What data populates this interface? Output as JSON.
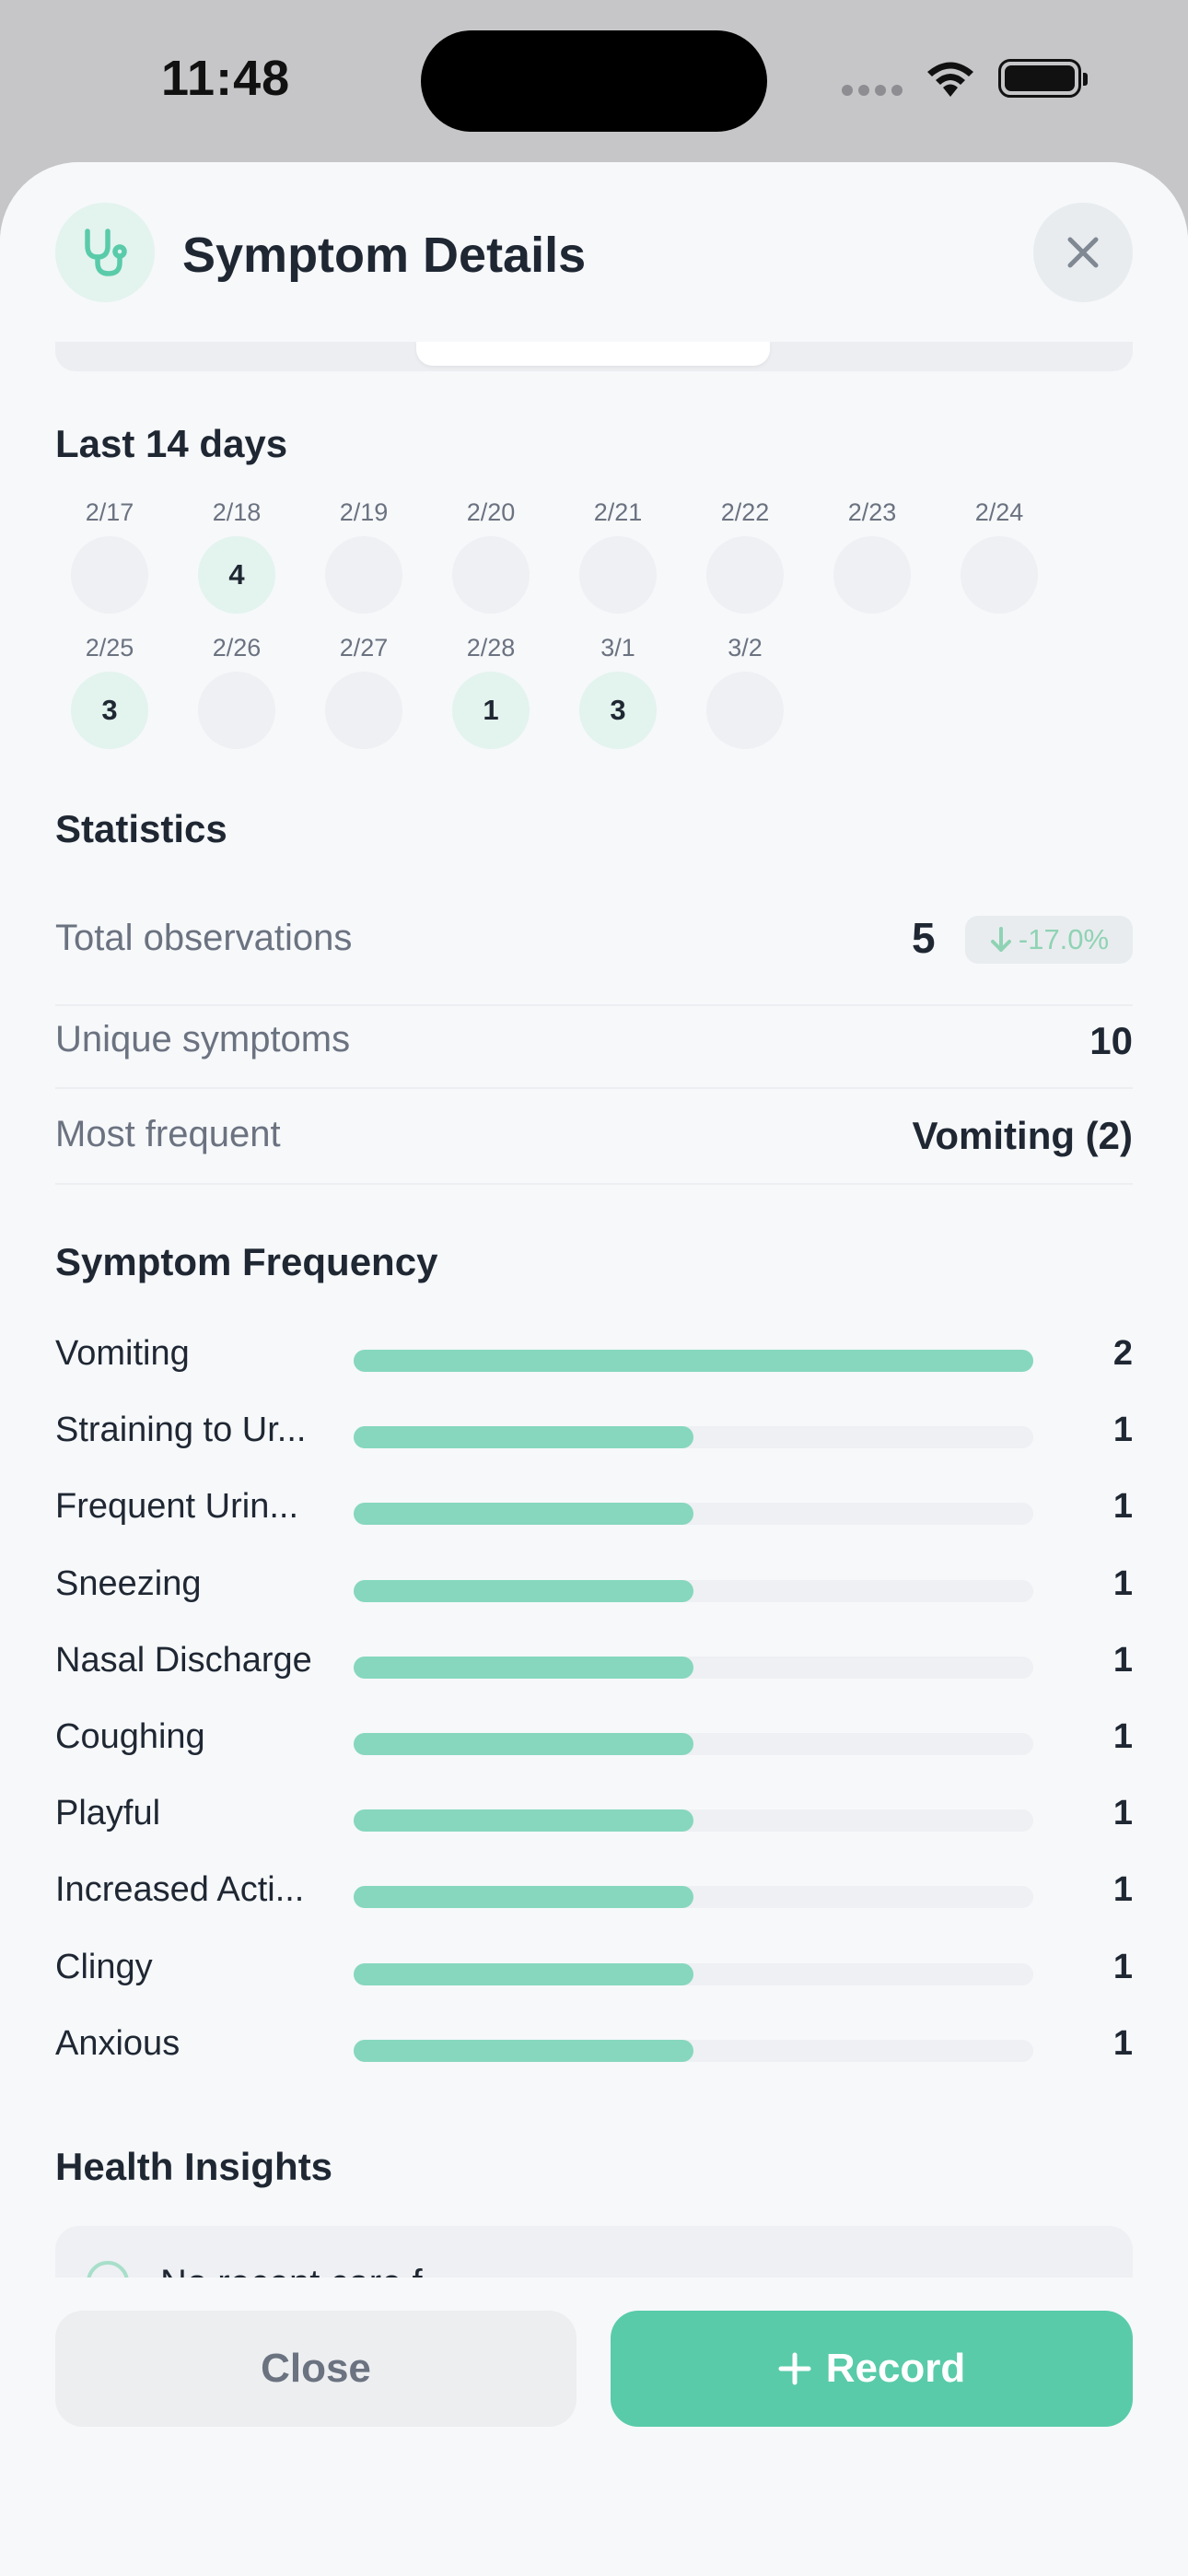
{
  "status_bar": {
    "time": "11:48"
  },
  "header": {
    "title": "Symptom Details"
  },
  "calendar": {
    "title": "Last 14 days",
    "days": [
      {
        "date": "2/17",
        "count": ""
      },
      {
        "date": "2/18",
        "count": "4"
      },
      {
        "date": "2/19",
        "count": ""
      },
      {
        "date": "2/20",
        "count": ""
      },
      {
        "date": "2/21",
        "count": ""
      },
      {
        "date": "2/22",
        "count": ""
      },
      {
        "date": "2/23",
        "count": ""
      },
      {
        "date": "2/24",
        "count": ""
      },
      {
        "date": "2/25",
        "count": "3"
      },
      {
        "date": "2/26",
        "count": ""
      },
      {
        "date": "2/27",
        "count": ""
      },
      {
        "date": "2/28",
        "count": "1"
      },
      {
        "date": "3/1",
        "count": "3"
      },
      {
        "date": "3/2",
        "count": ""
      }
    ]
  },
  "statistics": {
    "title": "Statistics",
    "total_label": "Total observations",
    "total_value": "5",
    "trend": "-17.0%",
    "unique_label": "Unique symptoms",
    "unique_value": "10",
    "most_label": "Most frequent",
    "most_value": "Vomiting (2)"
  },
  "frequency": {
    "title": "Symptom Frequency",
    "max": 2,
    "items": [
      {
        "label": "Vomiting",
        "count": 2
      },
      {
        "label": "Straining to Ur...",
        "count": 1
      },
      {
        "label": "Frequent Urin...",
        "count": 1
      },
      {
        "label": "Sneezing",
        "count": 1
      },
      {
        "label": "Nasal Discharge",
        "count": 1
      },
      {
        "label": "Coughing",
        "count": 1
      },
      {
        "label": "Playful",
        "count": 1
      },
      {
        "label": "Increased Acti...",
        "count": 1
      },
      {
        "label": "Clingy",
        "count": 1
      },
      {
        "label": "Anxious",
        "count": 1
      }
    ]
  },
  "insights": {
    "title": "Health Insights",
    "first_item": "No recent care f"
  },
  "footer": {
    "close_label": "Close",
    "record_label": "Record"
  },
  "colors": {
    "accent": "#59cba9",
    "accent_light": "#e3f3ee",
    "bar_fill": "#86d7bd"
  }
}
